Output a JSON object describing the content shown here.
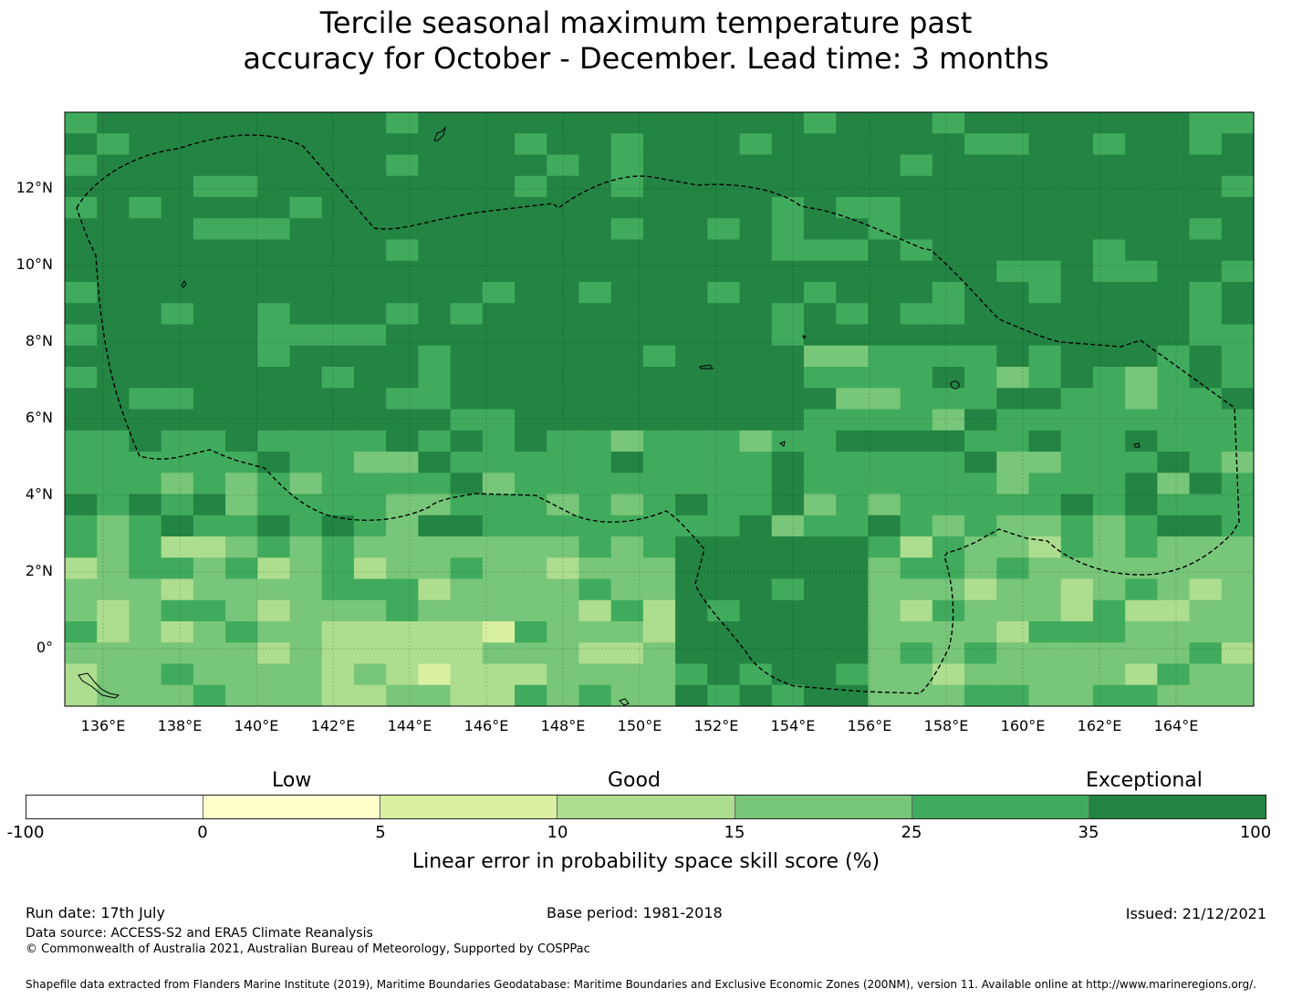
{
  "title": {
    "line1": "Tercile seasonal maximum temperature past",
    "line2": "accuracy for October - December. Lead time: 3 months"
  },
  "map": {
    "lat_ticks": [
      "12°N",
      "10°N",
      "8°N",
      "6°N",
      "4°N",
      "2°N",
      "0°"
    ],
    "lon_ticks": [
      "136°E",
      "138°E",
      "140°E",
      "142°E",
      "144°E",
      "146°E",
      "148°E",
      "150°E",
      "152°E",
      "154°E",
      "156°E",
      "158°E",
      "160°E",
      "162°E",
      "164°E"
    ]
  },
  "legend": {
    "categories": [
      "Low",
      "Good",
      "Exceptional"
    ],
    "bins": [
      "-100",
      "0",
      "5",
      "10",
      "15",
      "25",
      "35",
      "100"
    ],
    "colors": [
      "#ffffff",
      "#ffffcc",
      "#d9f0a3",
      "#addd8e",
      "#78c679",
      "#41ab5d",
      "#238443"
    ],
    "label": "Linear error in probability space skill score (%)"
  },
  "footer": {
    "run_date": "Run date: 17th July",
    "base_period": "Base period: 1981-2018",
    "issued": "Issued: 21/12/2021",
    "data_source": "Data source: ACCESS-S2 and ERA5 Climate Reanalysis",
    "copyright": "© Commonwealth of Australia 2021, Australian Bureau of Meteorology, Supported by COSPPac",
    "shapefile": "Shapefile data extracted from Flanders Marine Institute (2019), Maritime Boundaries Geodatabase: Maritime Boundaries and Exclusive Economic Zones (200NM), version 11. Available online at http://www.marineregions.org/."
  }
}
